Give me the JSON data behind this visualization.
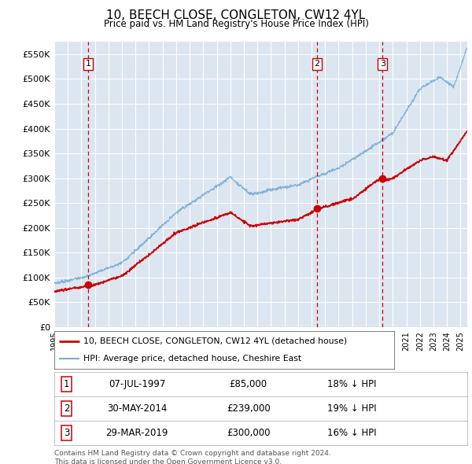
{
  "title": "10, BEECH CLOSE, CONGLETON, CW12 4YL",
  "subtitle": "Price paid vs. HM Land Registry's House Price Index (HPI)",
  "ylim": [
    0,
    575000
  ],
  "yticks": [
    0,
    50000,
    100000,
    150000,
    200000,
    250000,
    300000,
    350000,
    400000,
    450000,
    500000,
    550000
  ],
  "ytick_labels": [
    "£0",
    "£50K",
    "£100K",
    "£150K",
    "£200K",
    "£250K",
    "£300K",
    "£350K",
    "£400K",
    "£450K",
    "£500K",
    "£550K"
  ],
  "plot_bg_color": "#dce6f1",
  "red_line_color": "#cc0000",
  "blue_line_color": "#7aadd4",
  "sale_marker_color": "#cc0000",
  "dashed_line_color": "#cc0000",
  "legend_label_red": "10, BEECH CLOSE, CONGLETON, CW12 4YL (detached house)",
  "legend_label_blue": "HPI: Average price, detached house, Cheshire East",
  "sale_events": [
    {
      "num": 1,
      "date_num": 1997.52,
      "price": 85000,
      "date_str": "07-JUL-1997",
      "pct": "18%",
      "dir": "↓"
    },
    {
      "num": 2,
      "date_num": 2014.41,
      "price": 239000,
      "date_str": "30-MAY-2014",
      "pct": "19%",
      "dir": "↓"
    },
    {
      "num": 3,
      "date_num": 2019.24,
      "price": 300000,
      "date_str": "29-MAR-2019",
      "pct": "16%",
      "dir": "↓"
    }
  ],
  "footer_line1": "Contains HM Land Registry data © Crown copyright and database right 2024.",
  "footer_line2": "This data is licensed under the Open Government Licence v3.0.",
  "x_start": 1995.0,
  "x_end": 2025.5,
  "x_tick_years": [
    1995,
    1996,
    1997,
    1998,
    1999,
    2000,
    2001,
    2002,
    2003,
    2004,
    2005,
    2006,
    2007,
    2008,
    2009,
    2010,
    2011,
    2012,
    2013,
    2014,
    2015,
    2016,
    2017,
    2018,
    2019,
    2020,
    2021,
    2022,
    2023,
    2024,
    2025
  ]
}
